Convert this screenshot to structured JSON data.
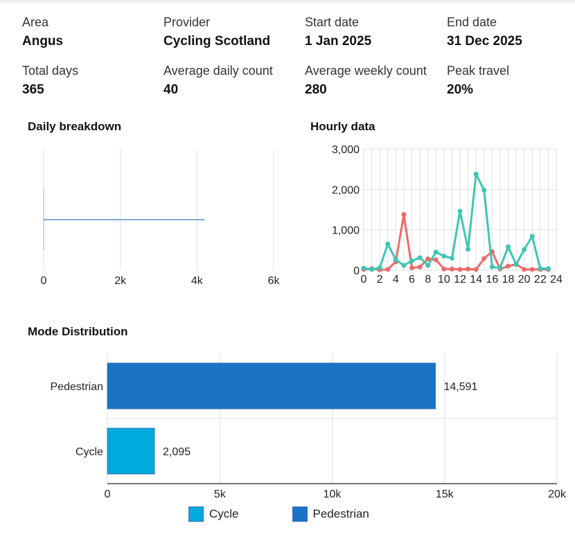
{
  "stats": [
    {
      "label": "Area",
      "value": "Angus"
    },
    {
      "label": "Provider",
      "value": "Cycling Scotland"
    },
    {
      "label": "Start date",
      "value": "1 Jan 2025"
    },
    {
      "label": "End date",
      "value": "31 Dec 2025"
    },
    {
      "label": "Total days",
      "value": "365"
    },
    {
      "label": "Average daily count",
      "value": "40"
    },
    {
      "label": "Average weekly count",
      "value": "280"
    },
    {
      "label": "Peak travel",
      "value": "20%"
    }
  ],
  "sections": {
    "daily": "Daily breakdown",
    "hourly": "Hourly data",
    "mode": "Mode Distribution"
  },
  "colors": {
    "pedestrian": "#1a73c4",
    "cycle": "#00aadc",
    "hourly_teal": "#3cc6b2",
    "hourly_red": "#eb6b6b",
    "daily_line": "#3a78b5",
    "grid": "#e2e2e2"
  },
  "chart_data": [
    {
      "type": "bar",
      "title": "Daily breakdown",
      "orientation": "horizontal",
      "xlim": [
        0,
        6000
      ],
      "x_ticks": [
        "0",
        "2k",
        "4k",
        "6k"
      ],
      "categories": [
        ""
      ],
      "values": [
        4200
      ]
    },
    {
      "type": "line",
      "title": "Hourly data",
      "x": [
        0,
        1,
        2,
        3,
        4,
        5,
        6,
        7,
        8,
        9,
        10,
        11,
        12,
        13,
        14,
        15,
        16,
        17,
        18,
        19,
        20,
        21,
        22,
        23
      ],
      "x_ticks": [
        "0",
        "2",
        "4",
        "6",
        "8",
        "10",
        "12",
        "14",
        "16",
        "18",
        "20",
        "22",
        "24"
      ],
      "y_ticks": [
        "0",
        "1,000",
        "2,000",
        "3,000"
      ],
      "xlim": [
        0,
        24
      ],
      "ylim": [
        0,
        3000
      ],
      "series": [
        {
          "color_key": "hourly_teal",
          "values": [
            50,
            20,
            60,
            650,
            260,
            120,
            230,
            310,
            120,
            450,
            350,
            300,
            1460,
            520,
            2380,
            1980,
            80,
            60,
            580,
            140,
            510,
            840,
            40,
            40
          ]
        },
        {
          "color_key": "hourly_red",
          "values": [
            20,
            40,
            10,
            20,
            210,
            1380,
            60,
            80,
            280,
            260,
            30,
            30,
            20,
            30,
            20,
            290,
            460,
            30,
            100,
            150,
            20,
            20,
            20,
            20
          ]
        }
      ]
    },
    {
      "type": "bar",
      "title": "Mode Distribution",
      "orientation": "horizontal",
      "xlim": [
        0,
        20000
      ],
      "x_ticks": [
        "0",
        "5k",
        "10k",
        "15k",
        "20k"
      ],
      "categories": [
        "Pedestrian",
        "Cycle"
      ],
      "values": [
        14591,
        2095
      ],
      "value_labels": [
        "14,591",
        "2,095"
      ],
      "legend": [
        "Cycle",
        "Pedestrian"
      ],
      "legend_position": "bottom"
    }
  ]
}
